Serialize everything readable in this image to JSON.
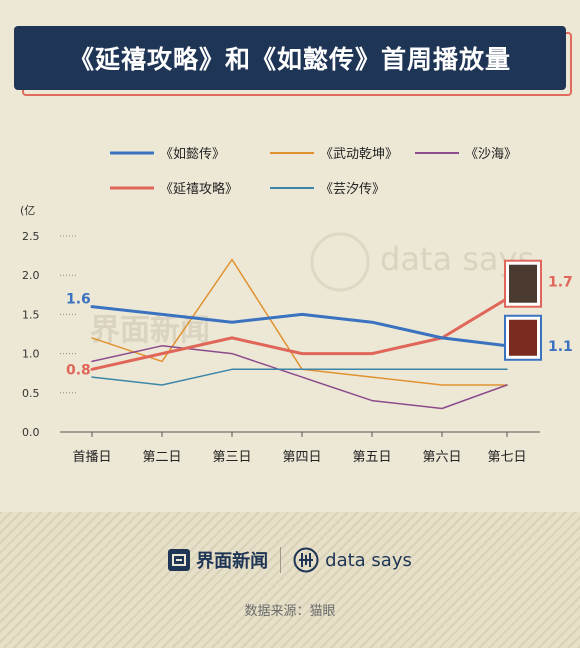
{
  "title": "《延禧攻略》和《如懿传》首周播放量",
  "footer": {
    "brand_jiemian": "界面新闻",
    "brand_datasays": "data says",
    "source": "数据来源：猫眼"
  },
  "watermark": {
    "jiemian": "界面新闻",
    "datasays": "data says"
  },
  "colors": {
    "background": "#ede8d6",
    "title_bg": "#1f3556",
    "title_accent": "#e06a5c"
  },
  "chart_data": {
    "type": "line",
    "ylabel": "(亿",
    "ylim": [
      0,
      2.5
    ],
    "yticks": [
      "0.0",
      "0.5",
      "1.0",
      "1.5",
      "2.0",
      "2.5"
    ],
    "categories": [
      "首播日",
      "第二日",
      "第三日",
      "第四日",
      "第五日",
      "第六日",
      "第七日"
    ],
    "legend_position": "top",
    "series": [
      {
        "name": "《如懿传》",
        "color": "#3a72c0",
        "width": 3,
        "values": [
          1.6,
          1.5,
          1.4,
          1.5,
          1.4,
          1.2,
          1.1
        ]
      },
      {
        "name": "《武动乾坤》",
        "color": "#e0922f",
        "width": 1.5,
        "values": [
          1.2,
          0.9,
          2.2,
          0.8,
          0.7,
          0.6,
          0.6
        ]
      },
      {
        "name": "《沙海》",
        "color": "#8c4b8c",
        "width": 1.5,
        "values": [
          0.9,
          1.1,
          1.0,
          0.7,
          0.4,
          0.3,
          0.6
        ]
      },
      {
        "name": "《延禧攻略》",
        "color": "#e0665a",
        "width": 3,
        "values": [
          0.8,
          1.0,
          1.2,
          1.0,
          1.0,
          1.2,
          1.7
        ]
      },
      {
        "name": "《芸汐传》",
        "color": "#3b86a8",
        "width": 1.5,
        "values": [
          0.7,
          0.6,
          0.8,
          0.8,
          0.8,
          0.8,
          0.8
        ]
      }
    ],
    "annotations": [
      {
        "text": "1.6",
        "series": "《如懿传》",
        "point": 0,
        "color": "#3a72c0"
      },
      {
        "text": "0.8",
        "series": "《延禧攻略》",
        "point": 0,
        "color": "#e0665a"
      },
      {
        "text": "1.7",
        "series": "《延禧攻略》",
        "point": 6,
        "color": "#e0665a"
      },
      {
        "text": "1.1",
        "series": "《如懿传》",
        "point": 6,
        "color": "#3a72c0"
      }
    ]
  }
}
